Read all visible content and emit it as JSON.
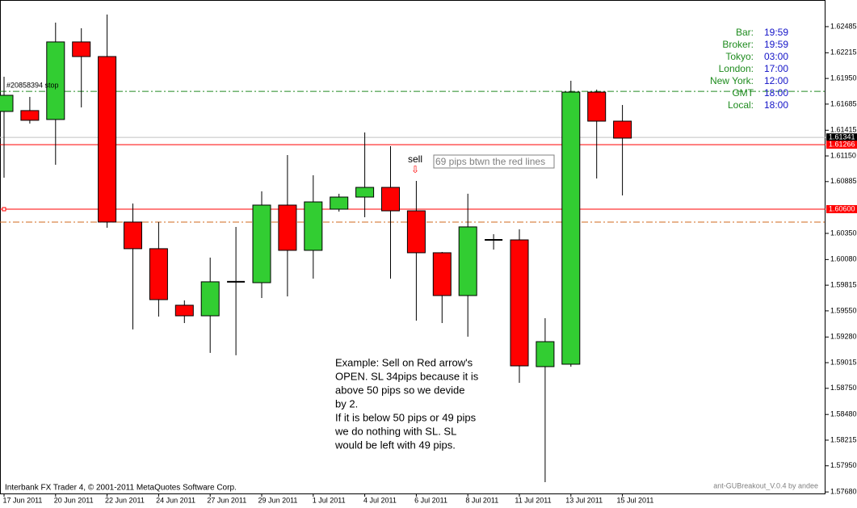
{
  "chart_data": {
    "type": "candlestick",
    "categories": [
      "17 Jun 2011",
      null,
      "20 Jun 2011",
      null,
      "22 Jun 2011",
      null,
      "24 Jun 2011",
      null,
      "27 Jun 2011",
      null,
      "29 Jun 2011",
      null,
      "1 Jul 2011",
      null,
      "4 Jul 2011",
      null,
      "6 Jul 2011",
      null,
      "8 Jul 2011",
      null,
      "11 Jul 2011",
      null,
      "13 Jul 2011",
      null,
      "15 Jul 2011"
    ],
    "open": [
      1.61609,
      1.61618,
      1.61526,
      1.62327,
      1.62176,
      1.60467,
      1.60192,
      1.59608,
      1.59499,
      1.5985,
      1.59841,
      1.60642,
      1.60175,
      1.606,
      1.60725,
      1.60825,
      1.60583,
      1.6015,
      1.59708,
      1.60283,
      1.60283,
      1.58974,
      1.58999,
      1.61809,
      1.61509
    ],
    "high": [
      1.61968,
      1.61759,
      1.62527,
      1.62468,
      1.6261,
      1.60658,
      1.60467,
      1.59658,
      1.601,
      1.60417,
      1.60784,
      1.61159,
      1.6095,
      1.60759,
      1.61392,
      1.61251,
      1.60892,
      1.60158,
      1.60759,
      1.60342,
      1.60392,
      1.59474,
      1.61926,
      1.61835,
      1.61676
    ],
    "low": [
      1.60925,
      1.61484,
      1.61059,
      1.61651,
      1.60408,
      1.59358,
      1.59491,
      1.59424,
      1.59116,
      1.59091,
      1.59683,
      1.59699,
      1.59883,
      1.60575,
      1.60517,
      1.59883,
      1.59449,
      1.59424,
      1.59283,
      1.60183,
      1.58807,
      1.57781,
      1.58974,
      1.60917,
      1.60742
    ],
    "close": [
      1.61776,
      1.61518,
      1.62327,
      1.62176,
      1.60467,
      1.60192,
      1.59666,
      1.59499,
      1.5985,
      1.5985,
      1.60642,
      1.60175,
      1.60675,
      1.60725,
      1.60825,
      1.60583,
      1.6015,
      1.59708,
      1.60417,
      1.60283,
      1.58982,
      1.59232,
      1.61809,
      1.61509,
      1.61334
    ],
    "up_color": "#32cd32",
    "down_color": "#ff0000",
    "ylim": [
      1.57656,
      1.6276
    ],
    "yticks": [
      1.62485,
      1.62215,
      {
        "value": 1.6195,
        "label": "1.61950"
      },
      1.61685,
      1.61415,
      {
        "value": 1.6115,
        "label": "1.61150"
      },
      1.60885,
      {
        "value": 1.6035,
        "label": "1.60350"
      },
      {
        "value": 1.6008,
        "label": "1.60080"
      },
      1.59815,
      {
        "value": 1.5955,
        "label": "1.59550"
      },
      {
        "value": 1.5928,
        "label": "1.59280"
      },
      1.59015,
      {
        "value": 1.5875,
        "label": "1.58750"
      },
      {
        "value": 1.5848,
        "label": "1.58480"
      },
      1.58215,
      {
        "value": 1.5795,
        "label": "1.57950"
      },
      {
        "value": 1.5768,
        "label": "1.57680"
      }
    ],
    "price_lines": [
      {
        "value": 1.61817,
        "color": "#228b22",
        "dash": "dashdot"
      },
      {
        "value": 1.60467,
        "color": "#d2691e",
        "dash": "dashdot"
      }
    ],
    "price_markers": [
      {
        "value": 1.61341,
        "box_color": "#000000",
        "line_color": "#c0c0c0"
      },
      {
        "value": 1.61266,
        "box_color": "#ff0000",
        "line_color": "#ff0000"
      },
      {
        "value": 1.606,
        "label": "1.60600",
        "box_color": "#ff0000",
        "line_color": "#ff0000"
      }
    ],
    "order_label": "#20858394 stop",
    "signal_label": "sell",
    "pips_note": "69 pips btwn the red lines",
    "annotation": [
      "Example: Sell on Red arrow's",
      "OPEN. SL 34pips because it is",
      "above 50 pips so we devide",
      "by 2.",
      "If it is below 50 pips or 49 pips",
      "we do nothing with SL. SL",
      "would be left with 49 pips."
    ],
    "info_panel": [
      {
        "label": "Bar:",
        "value": "19:59"
      },
      {
        "label": "Broker:",
        "value": "19:59"
      },
      {
        "label": "Tokyo:",
        "value": "03:00"
      },
      {
        "label": "London:",
        "value": "17:00"
      },
      {
        "label": "New York:",
        "value": "12:00"
      },
      {
        "label": "GMT",
        "value": "18:00"
      },
      {
        "label": "Local:",
        "value": "18:00"
      }
    ],
    "footer_left": "Interbank FX Trader 4, © 2001-2011 MetaQuotes Software Corp.",
    "footer_right": "ant-GUBreakout_V.0.4 by andee"
  }
}
